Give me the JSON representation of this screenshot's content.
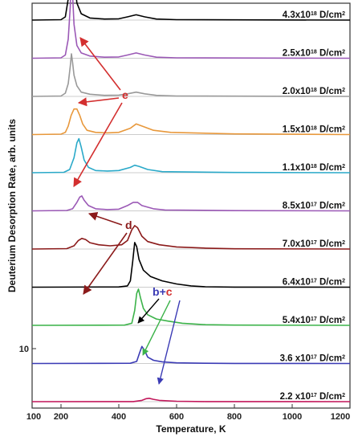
{
  "chart_data": {
    "type": "line",
    "title": "",
    "xlabel": "Temperature, K",
    "ylabel": "Deuterium Desorption Rate, arb. units",
    "xlim": [
      100,
      1200
    ],
    "x_ticks": [
      100,
      200,
      400,
      600,
      800,
      1000,
      1200
    ],
    "y_ticks": [
      {
        "value": 10,
        "label": "10"
      }
    ],
    "grid": false,
    "legend": "none",
    "series": [
      {
        "name": "4.3x10^18 D/cm^2",
        "label_main": "4.3x10",
        "label_exp": "18",
        "label_unit": "D/cm",
        "label_unit_exp": "2",
        "color": "#000000",
        "offset": 9,
        "x": [
          100,
          200,
          215,
          225,
          232,
          236,
          240,
          245,
          255,
          270,
          300,
          350,
          400,
          430,
          460,
          490,
          530,
          600,
          800,
          1200
        ],
        "y": [
          0,
          0.2,
          1.5,
          10,
          30,
          55,
          38,
          20,
          8,
          3,
          1,
          0.5,
          0.6,
          1.5,
          2.5,
          1.5,
          0.5,
          0.2,
          0.1,
          0
        ]
      },
      {
        "name": "2.5x10^18 D/cm^2",
        "label_main": "2.5x10",
        "label_exp": "18",
        "label_unit": "D/cm",
        "label_unit_exp": "2",
        "color": "#9b59b6",
        "offset": 8,
        "x": [
          100,
          200,
          215,
          225,
          232,
          236,
          240,
          245,
          255,
          270,
          300,
          350,
          400,
          430,
          460,
          490,
          530,
          600,
          800,
          1200
        ],
        "y": [
          0,
          0.2,
          1.5,
          9,
          24,
          40,
          30,
          16,
          6,
          2.5,
          1,
          0.5,
          0.6,
          1.5,
          2.5,
          1.5,
          0.5,
          0.2,
          0.1,
          0
        ]
      },
      {
        "name": "2.0x10^18 D/cm^2",
        "label_main": "2.0x10",
        "label_exp": "18",
        "label_unit": "D/cm",
        "label_unit_exp": "2",
        "color": "#999999",
        "offset": 7,
        "x": [
          100,
          200,
          215,
          225,
          232,
          236,
          240,
          245,
          255,
          270,
          300,
          350,
          400,
          430,
          460,
          490,
          530,
          600,
          800,
          1200
        ],
        "y": [
          0,
          0.2,
          1.5,
          6,
          14,
          20,
          16,
          10,
          5,
          2,
          1,
          0.5,
          0.6,
          1.2,
          2,
          1.2,
          0.5,
          0.2,
          0.1,
          0
        ]
      },
      {
        "name": "1.5x10^18 D/cm^2",
        "label_main": "1.5x10",
        "label_exp": "18",
        "label_unit": "D/cm",
        "label_unit_exp": "2",
        "color": "#e8983b",
        "offset": 6,
        "x": [
          100,
          200,
          215,
          225,
          235,
          245,
          255,
          265,
          275,
          290,
          320,
          360,
          400,
          440,
          460,
          480,
          520,
          580,
          800,
          1200
        ],
        "y": [
          0,
          0.2,
          1,
          4,
          9,
          12,
          12,
          9,
          5,
          2,
          1,
          0.8,
          1,
          3,
          5,
          4,
          2,
          1,
          0.3,
          0
        ]
      },
      {
        "name": "1.1x10^18 D/cm^2",
        "label_main": "1.1x10",
        "label_exp": "18",
        "label_unit": "D/cm",
        "label_unit_exp": "2",
        "color": "#2aa9c9",
        "offset": 5,
        "x": [
          100,
          210,
          230,
          245,
          255,
          262,
          270,
          280,
          295,
          320,
          360,
          400,
          440,
          455,
          470,
          500,
          550,
          800,
          1200
        ],
        "y": [
          0,
          0.2,
          1.5,
          7,
          14,
          16,
          12,
          6,
          2.5,
          1,
          0.8,
          1,
          2.5,
          3.5,
          3,
          1.5,
          0.5,
          0.1,
          0
        ]
      },
      {
        "name": "8.5x10^17 D/cm^2",
        "label_main": "8.5x10",
        "label_exp": "17",
        "label_unit": "D/cm",
        "label_unit_exp": "2",
        "color": "#9b59b6",
        "offset": 4,
        "x": [
          100,
          220,
          240,
          255,
          265,
          272,
          280,
          295,
          320,
          360,
          400,
          430,
          450,
          465,
          480,
          520,
          560,
          800,
          1200
        ],
        "y": [
          0,
          0.2,
          1,
          4,
          6.5,
          7,
          5,
          2.5,
          1,
          0.6,
          0.8,
          2.5,
          4,
          4,
          2.5,
          1,
          0.4,
          0.1,
          0
        ]
      },
      {
        "name": "7.0x10^17 D/cm^2",
        "label_main": "7.0x10",
        "label_exp": "17",
        "label_unit": "D/cm",
        "label_unit_exp": "2",
        "color": "#8b1a1a",
        "offset": 3,
        "x": [
          100,
          220,
          245,
          260,
          272,
          285,
          300,
          330,
          370,
          410,
          430,
          445,
          455,
          465,
          480,
          500,
          540,
          600,
          700,
          800,
          1200
        ],
        "y": [
          0,
          0.2,
          1.5,
          4,
          5,
          4.5,
          3,
          2,
          1.5,
          2,
          4,
          9,
          11,
          10,
          6,
          3.5,
          2,
          1,
          0.4,
          0.1,
          0
        ]
      },
      {
        "name": "6.4x10^17 D/cm^2",
        "label_main": "6.4x10",
        "label_exp": "17",
        "label_unit": "D/cm",
        "label_unit_exp": "2",
        "color": "#000000",
        "offset": 2,
        "x": [
          100,
          400,
          430,
          440,
          448,
          455,
          462,
          470,
          485,
          510,
          550,
          600,
          650,
          700,
          800,
          1200
        ],
        "y": [
          0,
          0.1,
          0.6,
          3,
          12,
          21,
          19,
          13,
          8,
          5,
          3,
          1.5,
          0.6,
          0.2,
          0.05,
          0
        ]
      },
      {
        "name": "5.4x10^17 D/cm^2",
        "label_main": "5.4x10",
        "label_exp": "17",
        "label_unit": "D/cm",
        "label_unit_exp": "2",
        "color": "#3cb34a",
        "offset": 1,
        "x": [
          100,
          420,
          445,
          455,
          462,
          468,
          475,
          485,
          500,
          530,
          570,
          620,
          700,
          800,
          1200
        ],
        "y": [
          0,
          0.1,
          1,
          7,
          15,
          17,
          13,
          8,
          5,
          3,
          2,
          1,
          0.3,
          0.1,
          0
        ]
      },
      {
        "name": "3.6 x10^17 D/cm^2",
        "label_main": "3.6 x10",
        "label_exp": "17",
        "label_unit": "D/cm",
        "label_unit_exp": "2",
        "color": "#3b3bb5",
        "offset": 0,
        "x": [
          100,
          440,
          462,
          472,
          480,
          490,
          500,
          520,
          550,
          600,
          700,
          800,
          1200
        ],
        "y": [
          0,
          0.1,
          1,
          5,
          8,
          6,
          3,
          1.5,
          0.8,
          0.3,
          0.1,
          0.05,
          0
        ]
      },
      {
        "name": "2.2 x10^17 D/cm^2",
        "label_main": "2.2 x10",
        "label_exp": "17",
        "label_unit": "D/cm",
        "label_unit_exp": "2",
        "color": "#c2185b",
        "offset": -1,
        "x": [
          100,
          450,
          480,
          495,
          505,
          520,
          540,
          600,
          700,
          800,
          1200
        ],
        "y": [
          0,
          0.05,
          0.6,
          1.4,
          1.6,
          1.1,
          0.6,
          0.2,
          0.05,
          0.02,
          0
        ]
      }
    ],
    "annotations": [
      {
        "text": "e",
        "color": "#d32f2f"
      },
      {
        "text": "d",
        "color": "#8b1a1a"
      },
      {
        "text_left": "b",
        "text_plus": "+",
        "text_right": "c",
        "color_left": "#3b3bb5",
        "color_right": "#d32f2f"
      }
    ]
  }
}
